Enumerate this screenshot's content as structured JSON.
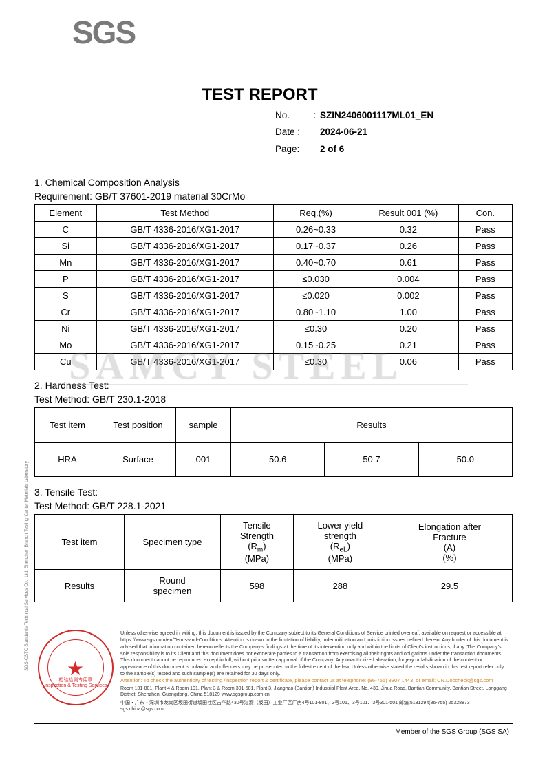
{
  "logo_text": "SGS",
  "title": "TEST REPORT",
  "meta": {
    "no_label": "No.",
    "no_value": "SZIN2406001117ML01_EN",
    "date_label": "Date :",
    "date_value": "2024-06-21",
    "page_label": "Page:",
    "page_value": "2 of 6"
  },
  "section1": {
    "title": "1. Chemical Composition Analysis",
    "requirement": "Requirement: GB/T 37601-2019 material 30CrMo",
    "headers": [
      "Element",
      "Test Method",
      "Req.(%)",
      "Result 001 (%)",
      "Con."
    ],
    "rows": [
      [
        "C",
        "GB/T 4336-2016/XG1-2017",
        "0.26~0.33",
        "0.32",
        "Pass"
      ],
      [
        "Si",
        "GB/T 4336-2016/XG1-2017",
        "0.17~0.37",
        "0.26",
        "Pass"
      ],
      [
        "Mn",
        "GB/T 4336-2016/XG1-2017",
        "0.40~0.70",
        "0.61",
        "Pass"
      ],
      [
        "P",
        "GB/T 4336-2016/XG1-2017",
        "≤0.030",
        "0.004",
        "Pass"
      ],
      [
        "S",
        "GB/T 4336-2016/XG1-2017",
        "≤0.020",
        "0.002",
        "Pass"
      ],
      [
        "Cr",
        "GB/T 4336-2016/XG1-2017",
        "0.80~1.10",
        "1.00",
        "Pass"
      ],
      [
        "Ni",
        "GB/T 4336-2016/XG1-2017",
        "≤0.30",
        "0.20",
        "Pass"
      ],
      [
        "Mo",
        "GB/T 4336-2016/XG1-2017",
        "0.15~0.25",
        "0.21",
        "Pass"
      ],
      [
        "Cu",
        "GB/T 4336-2016/XG1-2017",
        "≤0.30",
        "0.06",
        "Pass"
      ]
    ]
  },
  "section2": {
    "title": "2. Hardness Test:",
    "method": "Test Method: GB/T 230.1-2018",
    "headers": [
      "Test item",
      "Test position",
      "sample",
      "Results"
    ],
    "row": [
      "HRA",
      "Surface",
      "001",
      "50.6",
      "50.7",
      "50.0"
    ]
  },
  "section3": {
    "title": "3. Tensile Test:",
    "method": "Test Method: GB/T 228.1-2021",
    "h_testitem": "Test item",
    "h_spectype": "Specimen type",
    "h_tensile_l1": "Tensile",
    "h_tensile_l2": "Strength",
    "h_tensile_l3": "(Rm)",
    "h_tensile_l4": "(MPa)",
    "h_lower_l1": "Lower yield",
    "h_lower_l2": "strength",
    "h_lower_l3": "(ReL)",
    "h_lower_l4": "(MPa)",
    "h_elong_l1": "Elongation after",
    "h_elong_l2": "Fracture",
    "h_elong_l3": "(A)",
    "h_elong_l4": "(%)",
    "r_item": "Results",
    "r_spec_l1": "Round",
    "r_spec_l2": "specimen",
    "r_tensile": "598",
    "r_lower": "288",
    "r_elong": "29.5"
  },
  "watermark": "SAMCY STEEL",
  "footer": {
    "stamp_line1": "检验检测专用章",
    "stamp_line2": "Inspection & Testing Services",
    "disclaimer": "Unless otherwise agreed in writing, this document is issued by the Company subject to its General Conditions of Service printed overleaf, available on request or accessible at https://www.sgs.com/en/Terms-and-Conditions. Attention is drawn to the limitation of liability, indemnification and jurisdiction issues defined therein. Any holder of this document is advised that information contained hereon reflects the Company's findings at the time of its intervention only and within the limits of Client's instructions, if any. The Company's sole responsibility is to its Client and this document does not exonerate parties to a transaction from exercising all their rights and obligations under the transaction documents. This document cannot be reproduced except in full, without prior written approval of the Company. Any unauthorized alteration, forgery or falsification of the content or appearance of this document is unlawful and offenders may be prosecuted to the fullest extent of the law. Unless otherwise stated the results shown in this test report refer only to the sample(s) tested and such sample(s) are retained for 30 days only.",
    "alert": "Attention: To check the authenticity of testing /inspection report & certificate, please contact us at telephone: (86-755) 8307 1443, or email: CN.Doccheck@sgs.com",
    "addr_en": "Room 101-801, Plant 4 & Room 101, Plant 3 & Room 301-501, Plant 3, Jianghao (Bantian) Industrial Plant Area, No. 430, Jihua Road, Bantian Community, Bantian Street, Longgang District, Shenzhen, Guangdong, China 518129   www.sgsgroup.com.cn",
    "addr_cn": "中国・广东・深圳市龙岗区坂田街道坂田社区吉华路430号江灏（坂田）工业厂区厂房4号101-801、2号101、3号101、3号301-501 邮编:518129    t(86-755) 25328873   sgs.china@sgs.com",
    "member": "Member of the SGS Group (SGS SA)",
    "sidetext": "SGS-CSTC Standards Technical Services Co., Ltd.    Shenzhen Branch Testing Center    Materials Laboratory"
  }
}
